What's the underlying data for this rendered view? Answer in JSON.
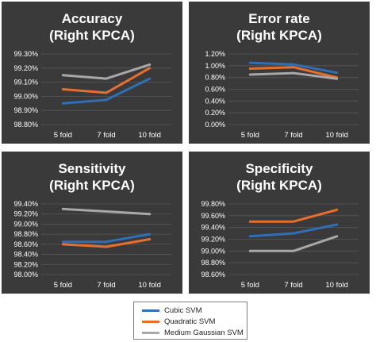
{
  "colors": {
    "panel_bg": "#3a3a3a",
    "text": "#ffffff",
    "grid": "#595959",
    "series": [
      "#2f6fb5",
      "#e86e2c",
      "#a8a8a8"
    ]
  },
  "legend": {
    "items": [
      {
        "label": "Cubic SVM",
        "color": "#2f6fb5"
      },
      {
        "label": "Quadratic SVM",
        "color": "#e86e2c"
      },
      {
        "label": "Medium Gaussian SVM",
        "color": "#a8a8a8"
      }
    ]
  },
  "chart_data": [
    {
      "type": "line",
      "title": [
        "Accuracy",
        "(Right KPCA)"
      ],
      "categories": [
        "5 fold",
        "7 fold",
        "10 fold"
      ],
      "yticks": [
        "98.80%",
        "98.90%",
        "99.00%",
        "99.10%",
        "99.20%",
        "99.30%"
      ],
      "ylim": [
        98.8,
        99.3
      ],
      "series": [
        {
          "name": "Cubic SVM",
          "values": [
            98.95,
            98.975,
            99.125
          ]
        },
        {
          "name": "Quadratic SVM",
          "values": [
            99.05,
            99.025,
            99.2
          ]
        },
        {
          "name": "Medium Gaussian SVM",
          "values": [
            99.15,
            99.125,
            99.225
          ]
        }
      ]
    },
    {
      "type": "line",
      "title": [
        "Error rate",
        "(Right KPCA)"
      ],
      "categories": [
        "5 fold",
        "7 fold",
        "10 fold"
      ],
      "yticks": [
        "0.00%",
        "0.20%",
        "0.40%",
        "0.60%",
        "0.80%",
        "1.00%",
        "1.20%"
      ],
      "ylim": [
        0,
        1.2
      ],
      "series": [
        {
          "name": "Cubic SVM",
          "values": [
            1.05,
            1.02,
            0.88
          ]
        },
        {
          "name": "Quadratic SVM",
          "values": [
            0.95,
            0.975,
            0.8
          ]
        },
        {
          "name": "Medium Gaussian SVM",
          "values": [
            0.85,
            0.875,
            0.78
          ]
        }
      ]
    },
    {
      "type": "line",
      "title": [
        "Sensitivity",
        "(Right KPCA)"
      ],
      "categories": [
        "5 fold",
        "7 fold",
        "10 fold"
      ],
      "yticks": [
        "98.00%",
        "98.20%",
        "98.40%",
        "98.60%",
        "98.80%",
        "99.00%",
        "99.20%",
        "99.40%"
      ],
      "ylim": [
        98.0,
        99.4
      ],
      "series": [
        {
          "name": "Cubic SVM",
          "values": [
            98.65,
            98.65,
            98.8
          ]
        },
        {
          "name": "Quadratic SVM",
          "values": [
            98.6,
            98.55,
            98.7
          ]
        },
        {
          "name": "Medium Gaussian SVM",
          "values": [
            99.3,
            99.25,
            99.2
          ]
        }
      ]
    },
    {
      "type": "line",
      "title": [
        "Specificity",
        "(Right KPCA)"
      ],
      "categories": [
        "5 fold",
        "7 fold",
        "10 fold"
      ],
      "yticks": [
        "98.60%",
        "98.80%",
        "99.00%",
        "99.20%",
        "99.40%",
        "99.60%",
        "99.80%"
      ],
      "ylim": [
        98.6,
        99.8
      ],
      "series": [
        {
          "name": "Cubic SVM",
          "values": [
            99.25,
            99.3,
            99.45
          ]
        },
        {
          "name": "Quadratic SVM",
          "values": [
            99.5,
            99.5,
            99.7
          ]
        },
        {
          "name": "Medium Gaussian SVM",
          "values": [
            99.0,
            99.0,
            99.25
          ]
        }
      ]
    }
  ]
}
